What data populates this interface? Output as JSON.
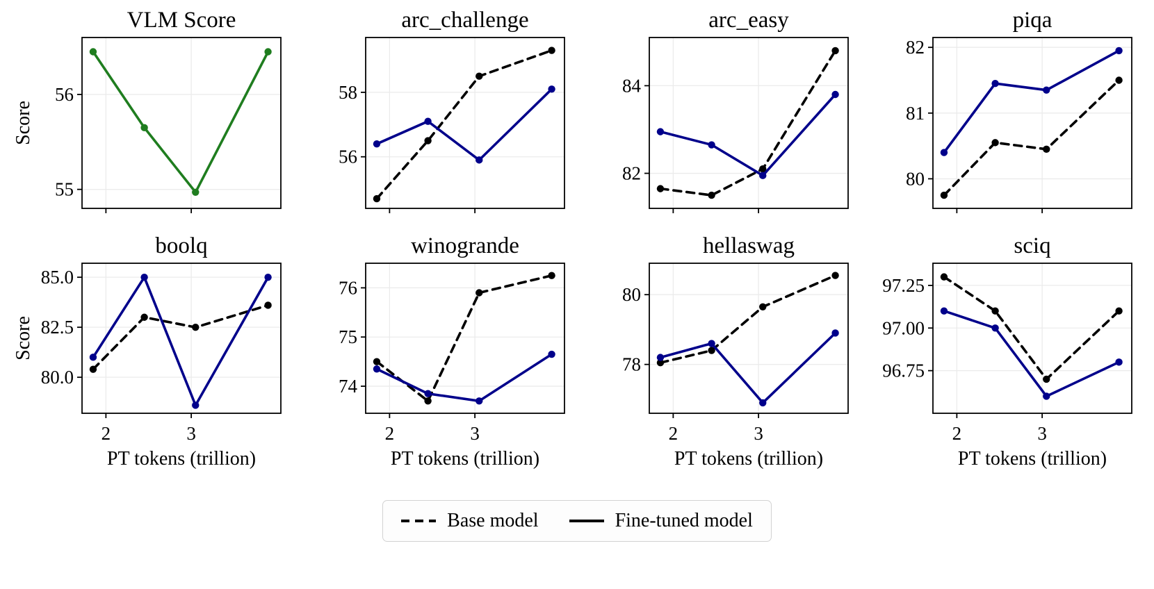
{
  "figure": {
    "xlabel": "PT tokens (trillion)",
    "ylabel": "Score",
    "background": "#ffffff"
  },
  "legend": {
    "items": [
      {
        "label": "Base model",
        "style": "dashed",
        "color": "#000000"
      },
      {
        "label": "Fine-tuned model",
        "style": "solid",
        "color": "#000000"
      }
    ]
  },
  "chart_data": [
    {
      "type": "line",
      "title": "VLM Score",
      "ylabel": "Score",
      "xlabel": "",
      "x": [
        1.85,
        2.45,
        3.05,
        3.9
      ],
      "xlim": [
        1.72,
        4.05
      ],
      "xticks": [
        2,
        3
      ],
      "xtick_labels": [
        "2",
        "3"
      ],
      "ytick_values": [
        55,
        56
      ],
      "ytick_labels": [
        "55",
        "56"
      ],
      "ylim": [
        54.8,
        56.6
      ],
      "series": [
        {
          "name": "Fine-tuned model",
          "color": "#1f7d1f",
          "dash": false,
          "values": [
            56.45,
            55.65,
            54.97,
            56.45
          ]
        }
      ]
    },
    {
      "type": "line",
      "title": "arc_challenge",
      "ylabel": "",
      "xlabel": "",
      "x": [
        1.85,
        2.45,
        3.05,
        3.9
      ],
      "xlim": [
        1.72,
        4.05
      ],
      "xticks": [
        2,
        3
      ],
      "xtick_labels": [
        "2",
        "3"
      ],
      "ytick_values": [
        56,
        58
      ],
      "ytick_labels": [
        "56",
        "58"
      ],
      "ylim": [
        54.4,
        59.7
      ],
      "series": [
        {
          "name": "Base model",
          "color": "#000000",
          "dash": true,
          "values": [
            54.7,
            56.5,
            58.5,
            59.3
          ]
        },
        {
          "name": "Fine-tuned model",
          "color": "#00008b",
          "dash": false,
          "values": [
            56.4,
            57.1,
            55.9,
            58.1
          ]
        }
      ]
    },
    {
      "type": "line",
      "title": "arc_easy",
      "ylabel": "",
      "xlabel": "",
      "x": [
        1.85,
        2.45,
        3.05,
        3.9
      ],
      "xlim": [
        1.72,
        4.05
      ],
      "xticks": [
        2,
        3
      ],
      "xtick_labels": [
        "2",
        "3"
      ],
      "ytick_values": [
        82,
        84
      ],
      "ytick_labels": [
        "82",
        "84"
      ],
      "ylim": [
        81.2,
        85.1
      ],
      "series": [
        {
          "name": "Base model",
          "color": "#000000",
          "dash": true,
          "values": [
            81.65,
            81.5,
            82.1,
            84.8
          ]
        },
        {
          "name": "Fine-tuned model",
          "color": "#00008b",
          "dash": false,
          "values": [
            82.95,
            82.65,
            81.95,
            83.8
          ]
        }
      ]
    },
    {
      "type": "line",
      "title": "piqa",
      "ylabel": "",
      "xlabel": "",
      "x": [
        1.85,
        2.45,
        3.05,
        3.9
      ],
      "xlim": [
        1.72,
        4.05
      ],
      "xticks": [
        2,
        3
      ],
      "xtick_labels": [
        "2",
        "3"
      ],
      "ytick_values": [
        80,
        81,
        82
      ],
      "ytick_labels": [
        "80",
        "81",
        "82"
      ],
      "ylim": [
        79.55,
        82.15
      ],
      "series": [
        {
          "name": "Base model",
          "color": "#000000",
          "dash": true,
          "values": [
            79.75,
            80.55,
            80.45,
            81.5
          ]
        },
        {
          "name": "Fine-tuned model",
          "color": "#00008b",
          "dash": false,
          "values": [
            80.4,
            81.45,
            81.35,
            81.95
          ]
        }
      ]
    },
    {
      "type": "line",
      "title": "boolq",
      "ylabel": "Score",
      "xlabel": "PT tokens (trillion)",
      "x": [
        1.85,
        2.45,
        3.05,
        3.9
      ],
      "xlim": [
        1.72,
        4.05
      ],
      "xticks": [
        2,
        3
      ],
      "xtick_labels": [
        "2",
        "3"
      ],
      "ytick_values": [
        80.0,
        82.5,
        85.0
      ],
      "ytick_labels": [
        "80.0",
        "82.5",
        "85.0"
      ],
      "ylim": [
        78.2,
        85.7
      ],
      "series": [
        {
          "name": "Base model",
          "color": "#000000",
          "dash": true,
          "values": [
            80.4,
            83.0,
            82.5,
            83.6
          ]
        },
        {
          "name": "Fine-tuned model",
          "color": "#00008b",
          "dash": false,
          "values": [
            81.0,
            85.0,
            78.6,
            85.0
          ]
        }
      ]
    },
    {
      "type": "line",
      "title": "winogrande",
      "ylabel": "",
      "xlabel": "PT tokens (trillion)",
      "x": [
        1.85,
        2.45,
        3.05,
        3.9
      ],
      "xlim": [
        1.72,
        4.05
      ],
      "xticks": [
        2,
        3
      ],
      "xtick_labels": [
        "2",
        "3"
      ],
      "ytick_values": [
        74,
        75,
        76
      ],
      "ytick_labels": [
        "74",
        "75",
        "76"
      ],
      "ylim": [
        73.45,
        76.5
      ],
      "series": [
        {
          "name": "Base model",
          "color": "#000000",
          "dash": true,
          "values": [
            74.5,
            73.7,
            75.9,
            76.25
          ]
        },
        {
          "name": "Fine-tuned model",
          "color": "#00008b",
          "dash": false,
          "values": [
            74.35,
            73.85,
            73.7,
            74.65
          ]
        }
      ]
    },
    {
      "type": "line",
      "title": "hellaswag",
      "ylabel": "",
      "xlabel": "PT tokens (trillion)",
      "x": [
        1.85,
        2.45,
        3.05,
        3.9
      ],
      "xlim": [
        1.72,
        4.05
      ],
      "xticks": [
        2,
        3
      ],
      "xtick_labels": [
        "2",
        "3"
      ],
      "ytick_values": [
        78,
        80
      ],
      "ytick_labels": [
        "78",
        "80"
      ],
      "ylim": [
        76.6,
        80.9
      ],
      "series": [
        {
          "name": "Base model",
          "color": "#000000",
          "dash": true,
          "values": [
            78.05,
            78.4,
            79.65,
            80.55
          ]
        },
        {
          "name": "Fine-tuned model",
          "color": "#00008b",
          "dash": false,
          "values": [
            78.2,
            78.6,
            76.9,
            78.9
          ]
        }
      ]
    },
    {
      "type": "line",
      "title": "sciq",
      "ylabel": "",
      "xlabel": "PT tokens (trillion)",
      "x": [
        1.85,
        2.45,
        3.05,
        3.9
      ],
      "xlim": [
        1.72,
        4.05
      ],
      "xticks": [
        2,
        3
      ],
      "xtick_labels": [
        "2",
        "3"
      ],
      "ytick_values": [
        96.75,
        97.0,
        97.25
      ],
      "ytick_labels": [
        "96.75",
        "97.00",
        "97.25"
      ],
      "ylim": [
        96.5,
        97.38
      ],
      "series": [
        {
          "name": "Base model",
          "color": "#000000",
          "dash": true,
          "values": [
            97.3,
            97.1,
            96.7,
            97.1
          ]
        },
        {
          "name": "Fine-tuned model",
          "color": "#00008b",
          "dash": false,
          "values": [
            97.1,
            97.0,
            96.6,
            96.8
          ]
        }
      ]
    }
  ]
}
